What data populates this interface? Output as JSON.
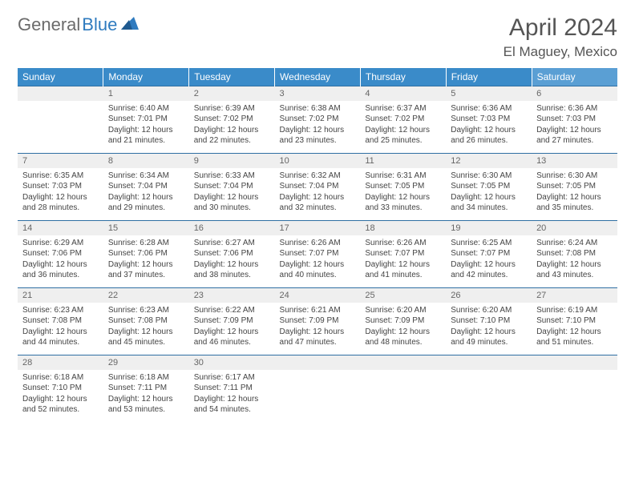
{
  "logo": {
    "part1": "General",
    "part2": "Blue"
  },
  "title": "April 2024",
  "location": "El Maguey, Mexico",
  "days": [
    "Sunday",
    "Monday",
    "Tuesday",
    "Wednesday",
    "Thursday",
    "Friday",
    "Saturday"
  ],
  "colors": {
    "header_bg": "#3a8bc9",
    "header_sat_bg": "#5a9fd4",
    "header_text": "#ffffff",
    "daynum_bg": "#efefef",
    "row_divider": "#2f6fa3",
    "text": "#444444",
    "logo_gray": "#6b6b6b",
    "logo_blue": "#2f7bbf"
  },
  "fonts": {
    "title_size": 30,
    "location_size": 17,
    "header_size": 12,
    "daynum_size": 11,
    "body_size": 10
  },
  "weeks": [
    [
      null,
      {
        "n": "1",
        "sr": "Sunrise: 6:40 AM",
        "ss": "Sunset: 7:01 PM",
        "d1": "Daylight: 12 hours",
        "d2": "and 21 minutes."
      },
      {
        "n": "2",
        "sr": "Sunrise: 6:39 AM",
        "ss": "Sunset: 7:02 PM",
        "d1": "Daylight: 12 hours",
        "d2": "and 22 minutes."
      },
      {
        "n": "3",
        "sr": "Sunrise: 6:38 AM",
        "ss": "Sunset: 7:02 PM",
        "d1": "Daylight: 12 hours",
        "d2": "and 23 minutes."
      },
      {
        "n": "4",
        "sr": "Sunrise: 6:37 AM",
        "ss": "Sunset: 7:02 PM",
        "d1": "Daylight: 12 hours",
        "d2": "and 25 minutes."
      },
      {
        "n": "5",
        "sr": "Sunrise: 6:36 AM",
        "ss": "Sunset: 7:03 PM",
        "d1": "Daylight: 12 hours",
        "d2": "and 26 minutes."
      },
      {
        "n": "6",
        "sr": "Sunrise: 6:36 AM",
        "ss": "Sunset: 7:03 PM",
        "d1": "Daylight: 12 hours",
        "d2": "and 27 minutes."
      }
    ],
    [
      {
        "n": "7",
        "sr": "Sunrise: 6:35 AM",
        "ss": "Sunset: 7:03 PM",
        "d1": "Daylight: 12 hours",
        "d2": "and 28 minutes."
      },
      {
        "n": "8",
        "sr": "Sunrise: 6:34 AM",
        "ss": "Sunset: 7:04 PM",
        "d1": "Daylight: 12 hours",
        "d2": "and 29 minutes."
      },
      {
        "n": "9",
        "sr": "Sunrise: 6:33 AM",
        "ss": "Sunset: 7:04 PM",
        "d1": "Daylight: 12 hours",
        "d2": "and 30 minutes."
      },
      {
        "n": "10",
        "sr": "Sunrise: 6:32 AM",
        "ss": "Sunset: 7:04 PM",
        "d1": "Daylight: 12 hours",
        "d2": "and 32 minutes."
      },
      {
        "n": "11",
        "sr": "Sunrise: 6:31 AM",
        "ss": "Sunset: 7:05 PM",
        "d1": "Daylight: 12 hours",
        "d2": "and 33 minutes."
      },
      {
        "n": "12",
        "sr": "Sunrise: 6:30 AM",
        "ss": "Sunset: 7:05 PM",
        "d1": "Daylight: 12 hours",
        "d2": "and 34 minutes."
      },
      {
        "n": "13",
        "sr": "Sunrise: 6:30 AM",
        "ss": "Sunset: 7:05 PM",
        "d1": "Daylight: 12 hours",
        "d2": "and 35 minutes."
      }
    ],
    [
      {
        "n": "14",
        "sr": "Sunrise: 6:29 AM",
        "ss": "Sunset: 7:06 PM",
        "d1": "Daylight: 12 hours",
        "d2": "and 36 minutes."
      },
      {
        "n": "15",
        "sr": "Sunrise: 6:28 AM",
        "ss": "Sunset: 7:06 PM",
        "d1": "Daylight: 12 hours",
        "d2": "and 37 minutes."
      },
      {
        "n": "16",
        "sr": "Sunrise: 6:27 AM",
        "ss": "Sunset: 7:06 PM",
        "d1": "Daylight: 12 hours",
        "d2": "and 38 minutes."
      },
      {
        "n": "17",
        "sr": "Sunrise: 6:26 AM",
        "ss": "Sunset: 7:07 PM",
        "d1": "Daylight: 12 hours",
        "d2": "and 40 minutes."
      },
      {
        "n": "18",
        "sr": "Sunrise: 6:26 AM",
        "ss": "Sunset: 7:07 PM",
        "d1": "Daylight: 12 hours",
        "d2": "and 41 minutes."
      },
      {
        "n": "19",
        "sr": "Sunrise: 6:25 AM",
        "ss": "Sunset: 7:07 PM",
        "d1": "Daylight: 12 hours",
        "d2": "and 42 minutes."
      },
      {
        "n": "20",
        "sr": "Sunrise: 6:24 AM",
        "ss": "Sunset: 7:08 PM",
        "d1": "Daylight: 12 hours",
        "d2": "and 43 minutes."
      }
    ],
    [
      {
        "n": "21",
        "sr": "Sunrise: 6:23 AM",
        "ss": "Sunset: 7:08 PM",
        "d1": "Daylight: 12 hours",
        "d2": "and 44 minutes."
      },
      {
        "n": "22",
        "sr": "Sunrise: 6:23 AM",
        "ss": "Sunset: 7:08 PM",
        "d1": "Daylight: 12 hours",
        "d2": "and 45 minutes."
      },
      {
        "n": "23",
        "sr": "Sunrise: 6:22 AM",
        "ss": "Sunset: 7:09 PM",
        "d1": "Daylight: 12 hours",
        "d2": "and 46 minutes."
      },
      {
        "n": "24",
        "sr": "Sunrise: 6:21 AM",
        "ss": "Sunset: 7:09 PM",
        "d1": "Daylight: 12 hours",
        "d2": "and 47 minutes."
      },
      {
        "n": "25",
        "sr": "Sunrise: 6:20 AM",
        "ss": "Sunset: 7:09 PM",
        "d1": "Daylight: 12 hours",
        "d2": "and 48 minutes."
      },
      {
        "n": "26",
        "sr": "Sunrise: 6:20 AM",
        "ss": "Sunset: 7:10 PM",
        "d1": "Daylight: 12 hours",
        "d2": "and 49 minutes."
      },
      {
        "n": "27",
        "sr": "Sunrise: 6:19 AM",
        "ss": "Sunset: 7:10 PM",
        "d1": "Daylight: 12 hours",
        "d2": "and 51 minutes."
      }
    ],
    [
      {
        "n": "28",
        "sr": "Sunrise: 6:18 AM",
        "ss": "Sunset: 7:10 PM",
        "d1": "Daylight: 12 hours",
        "d2": "and 52 minutes."
      },
      {
        "n": "29",
        "sr": "Sunrise: 6:18 AM",
        "ss": "Sunset: 7:11 PM",
        "d1": "Daylight: 12 hours",
        "d2": "and 53 minutes."
      },
      {
        "n": "30",
        "sr": "Sunrise: 6:17 AM",
        "ss": "Sunset: 7:11 PM",
        "d1": "Daylight: 12 hours",
        "d2": "and 54 minutes."
      },
      null,
      null,
      null,
      null
    ]
  ]
}
